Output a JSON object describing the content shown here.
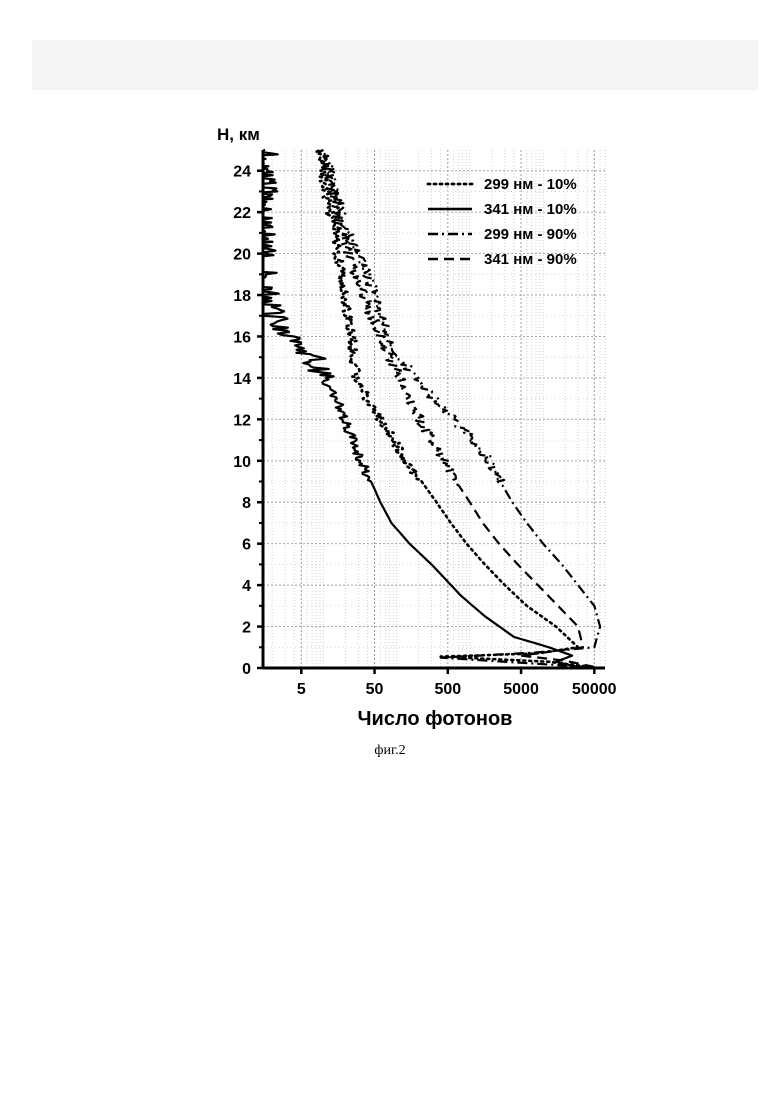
{
  "figure_caption": "фиг.2",
  "chart_data": {
    "type": "line",
    "title": "",
    "xlabel": "Число фотонов",
    "ylabel": "H, км",
    "x_scale": "log",
    "xlim": [
      1.5,
      70000
    ],
    "ylim": [
      0,
      25
    ],
    "x_ticks": [
      "5",
      "50",
      "500",
      "5000",
      "50000"
    ],
    "x_tick_values": [
      5,
      50,
      500,
      5000,
      50000
    ],
    "y_ticks": [
      "0",
      "2",
      "4",
      "6",
      "8",
      "10",
      "12",
      "14",
      "16",
      "18",
      "20",
      "22",
      "24"
    ],
    "y_tick_values": [
      0,
      2,
      4,
      6,
      8,
      10,
      12,
      14,
      16,
      18,
      20,
      22,
      24
    ],
    "grid": true,
    "legend_position": "top-right",
    "series": [
      {
        "name": "299 нм - 10%",
        "style": "dotted",
        "points": [
          [
            45000,
            0.05
          ],
          [
            12000,
            0.3
          ],
          [
            400,
            0.55
          ],
          [
            8000,
            0.7
          ],
          [
            30000,
            1.0
          ],
          [
            15000,
            2.0
          ],
          [
            6000,
            3.0
          ],
          [
            3000,
            4.0
          ],
          [
            1600,
            5.0
          ],
          [
            900,
            6.0
          ],
          [
            550,
            7.0
          ],
          [
            350,
            8.0
          ],
          [
            220,
            9.0
          ],
          [
            130,
            10.0
          ],
          [
            90,
            11.0
          ],
          [
            60,
            12.0
          ],
          [
            40,
            13.0
          ],
          [
            28,
            14.0
          ],
          [
            25,
            15.0
          ],
          [
            24,
            16.0
          ],
          [
            22,
            17.0
          ],
          [
            20,
            18.0
          ],
          [
            18,
            19.0
          ],
          [
            16,
            20.0
          ],
          [
            14,
            21.0
          ],
          [
            12,
            22.0
          ],
          [
            11,
            23.0
          ],
          [
            10,
            24.0
          ],
          [
            9,
            25.0
          ]
        ]
      },
      {
        "name": "341 нм - 10%",
        "style": "solid",
        "points": [
          [
            30000,
            0.05
          ],
          [
            15000,
            0.3
          ],
          [
            25000,
            0.6
          ],
          [
            12000,
            1.0
          ],
          [
            4000,
            1.5
          ],
          [
            1600,
            2.5
          ],
          [
            750,
            3.5
          ],
          [
            300,
            5.0
          ],
          [
            150,
            6.0
          ],
          [
            85,
            7.0
          ],
          [
            60,
            8.0
          ],
          [
            45,
            9.0
          ],
          [
            33,
            10.0
          ],
          [
            25,
            11.0
          ],
          [
            19,
            12.0
          ],
          [
            15,
            13.0
          ],
          [
            10,
            14.0
          ],
          [
            7,
            15.0
          ],
          [
            4,
            16.0
          ],
          [
            2,
            17.0
          ],
          [
            1.7,
            18.0
          ],
          [
            1.6,
            19.0
          ],
          [
            1.6,
            20.0
          ],
          [
            1.6,
            21.0
          ],
          [
            1.6,
            22.0
          ],
          [
            1.6,
            23.0
          ],
          [
            1.6,
            24.0
          ],
          [
            1.6,
            25.0
          ]
        ]
      },
      {
        "name": "299 нм - 90%",
        "style": "dashdot",
        "points": [
          [
            40000,
            0.05
          ],
          [
            400,
            0.5
          ],
          [
            8000,
            0.75
          ],
          [
            50000,
            1.0
          ],
          [
            60000,
            2.0
          ],
          [
            50000,
            3.0
          ],
          [
            30000,
            4.0
          ],
          [
            18000,
            5.0
          ],
          [
            10000,
            6.0
          ],
          [
            6000,
            7.0
          ],
          [
            3800,
            8.0
          ],
          [
            2600,
            9.0
          ],
          [
            1900,
            10.0
          ],
          [
            1100,
            11.0
          ],
          [
            600,
            12.0
          ],
          [
            320,
            13.0
          ],
          [
            180,
            14.0
          ],
          [
            110,
            15.0
          ],
          [
            75,
            16.0
          ],
          [
            60,
            17.0
          ],
          [
            50,
            18.0
          ],
          [
            40,
            19.0
          ],
          [
            30,
            20.0
          ],
          [
            22,
            21.0
          ],
          [
            17,
            22.0
          ],
          [
            15,
            23.0
          ],
          [
            12,
            24.0
          ],
          [
            10,
            25.0
          ]
        ]
      },
      {
        "name": "341 нм - 90%",
        "style": "dashed",
        "points": [
          [
            50000,
            0.05
          ],
          [
            20000,
            0.35
          ],
          [
            5000,
            0.6
          ],
          [
            35000,
            1.0
          ],
          [
            30000,
            2.0
          ],
          [
            16000,
            3.0
          ],
          [
            8500,
            4.0
          ],
          [
            4500,
            5.0
          ],
          [
            2500,
            6.0
          ],
          [
            1500,
            7.0
          ],
          [
            1000,
            8.0
          ],
          [
            650,
            9.0
          ],
          [
            450,
            10.0
          ],
          [
            300,
            11.0
          ],
          [
            210,
            12.0
          ],
          [
            150,
            13.0
          ],
          [
            110,
            14.0
          ],
          [
            80,
            15.0
          ],
          [
            60,
            16.0
          ],
          [
            45,
            17.0
          ],
          [
            36,
            18.0
          ],
          [
            28,
            19.0
          ],
          [
            22,
            20.0
          ],
          [
            18,
            21.0
          ],
          [
            15,
            22.0
          ],
          [
            13,
            23.0
          ],
          [
            11,
            24.0
          ],
          [
            10,
            25.0
          ]
        ]
      }
    ]
  }
}
